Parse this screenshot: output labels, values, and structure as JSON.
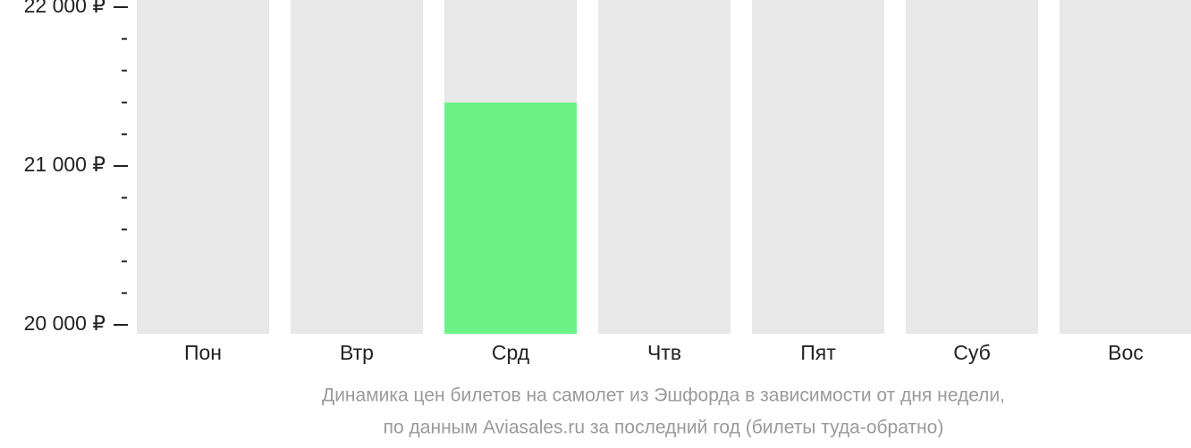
{
  "chart_data": {
    "type": "bar",
    "categories": [
      "Пон",
      "Втр",
      "Срд",
      "Чтв",
      "Пят",
      "Суб",
      "Вос"
    ],
    "values": [
      null,
      null,
      21400,
      null,
      null,
      null,
      null
    ],
    "color": "#6cf287",
    "ylim": [
      20000,
      22000
    ],
    "yticks": [
      {
        "value": 20000,
        "label": "20 000 ₽"
      },
      {
        "value": 21000,
        "label": "21 000 ₽"
      },
      {
        "value": 22000,
        "label": "22 000 ₽"
      }
    ],
    "minor_yticks": [
      20200,
      20400,
      20600,
      20800,
      21200,
      21400,
      21600,
      21800
    ],
    "caption": [
      "Динамика цен билетов на самолет из Эшфорда в зависимости от дня недели,",
      "по данным Aviasales.ru за последний год (билеты туда-обратно)"
    ]
  }
}
